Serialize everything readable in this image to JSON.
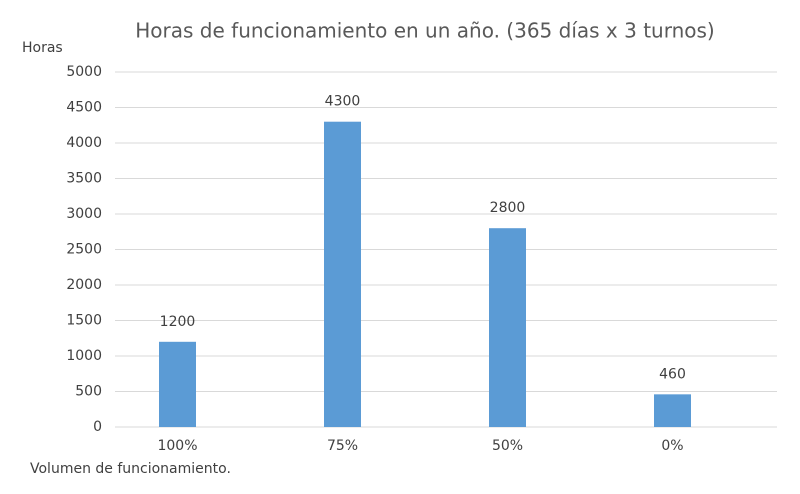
{
  "chart_data": {
    "type": "bar",
    "title": "Horas de funcionamiento en un año. (365 días x 3 turnos)",
    "y_label": "Horas",
    "x_label": "Volumen de funcionamiento.",
    "categories": [
      "100%",
      "75%",
      "50%",
      "0%"
    ],
    "values": [
      1200,
      4300,
      2800,
      460
    ],
    "color": "#5b9bd5",
    "ylim": [
      0,
      5000
    ],
    "yticks": [
      0,
      500,
      1000,
      1500,
      2000,
      2500,
      3000,
      3500,
      4000,
      4500,
      5000
    ],
    "grid": true
  }
}
